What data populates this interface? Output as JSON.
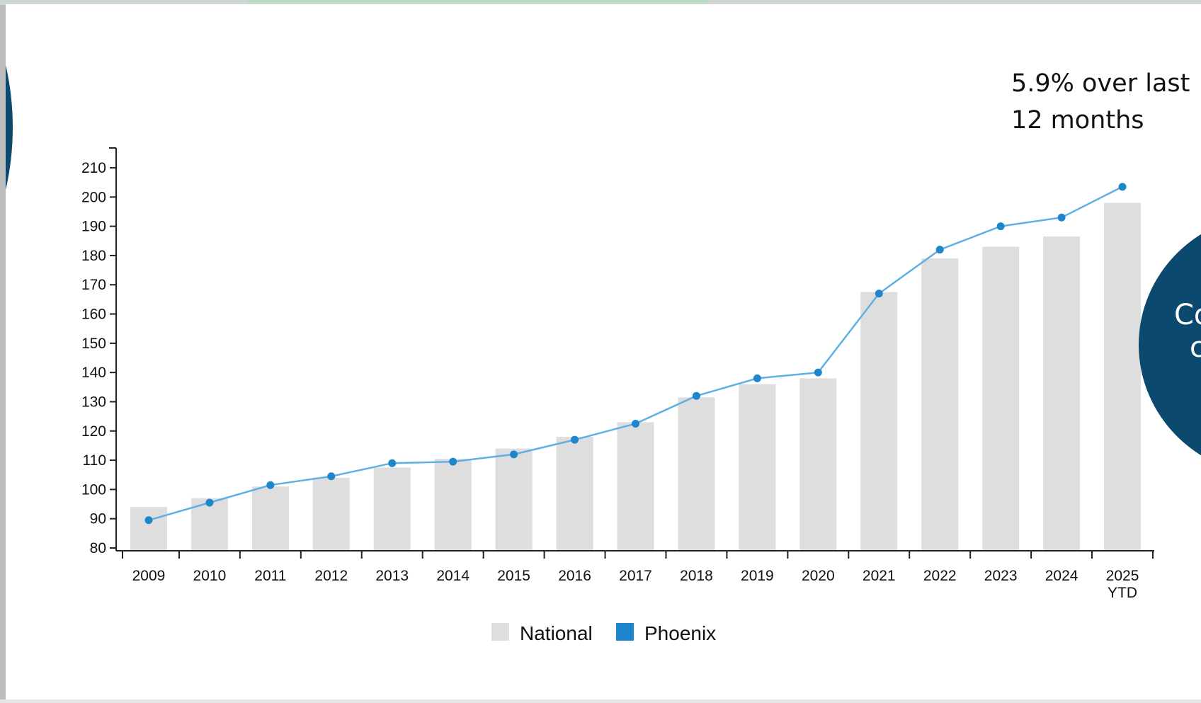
{
  "annotation": {
    "line1": "5.9% over last",
    "line2": "12 months"
  },
  "right_circle": {
    "line1": "Co",
    "line2": "c"
  },
  "colors": {
    "national": "#dedede",
    "phoenix": "#1f86cc",
    "phoenix_line": "#5fb0e2",
    "circle": "#0b4a6e"
  },
  "chart_data": {
    "type": "bar",
    "categories": [
      "2009",
      "2010",
      "2011",
      "2012",
      "2013",
      "2014",
      "2015",
      "2016",
      "2017",
      "2018",
      "2019",
      "2020",
      "2021",
      "2022",
      "2023",
      "2024",
      "2025 YTD"
    ],
    "series": [
      {
        "name": "National",
        "type": "bar",
        "values": [
          94,
          97,
          101,
          104,
          107.5,
          110.5,
          114,
          118,
          123,
          131.5,
          136,
          138,
          167.5,
          179,
          183,
          186.5,
          198
        ]
      },
      {
        "name": "Phoenix",
        "type": "line",
        "values": [
          89.5,
          95.5,
          101.5,
          104.5,
          109,
          109.5,
          112,
          117,
          122.5,
          132,
          138,
          140,
          167,
          182,
          190,
          193,
          203.5
        ]
      }
    ],
    "yticks": [
      80,
      90,
      100,
      110,
      120,
      130,
      140,
      150,
      160,
      170,
      180,
      190,
      200,
      210
    ],
    "ylim": [
      80,
      213
    ],
    "legend": [
      "National",
      "Phoenix"
    ],
    "legend_position": "bottom-center",
    "grid": false
  }
}
